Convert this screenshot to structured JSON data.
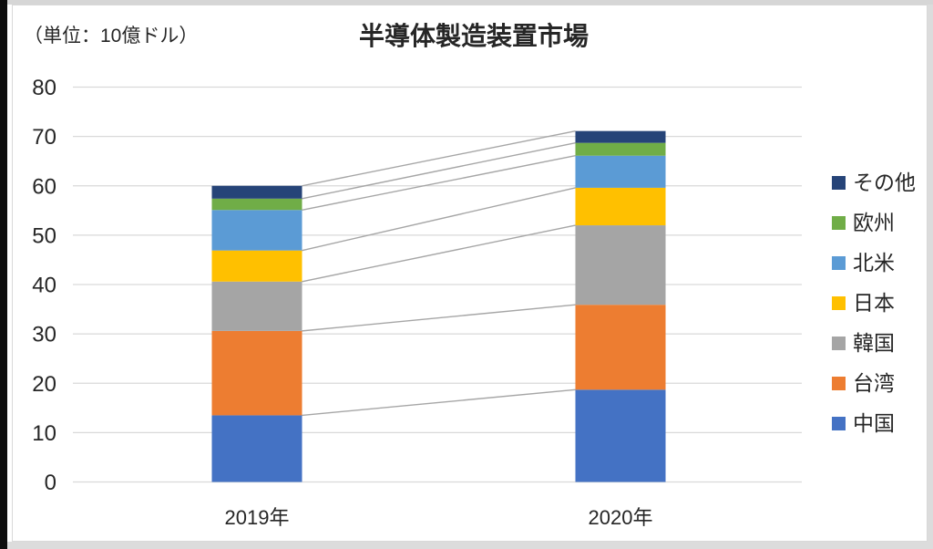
{
  "chart_data": {
    "type": "bar",
    "stacked": true,
    "title": "半導体製造装置市場",
    "unit_label": "（単位：10億ドル）",
    "categories": [
      "2019年",
      "2020年"
    ],
    "series": [
      {
        "name": "中国",
        "color": "#4472C4",
        "values": [
          13.5,
          18.7
        ]
      },
      {
        "name": "台湾",
        "color": "#ED7D31",
        "values": [
          17.1,
          17.2
        ]
      },
      {
        "name": "韓国",
        "color": "#A5A5A5",
        "values": [
          10.0,
          16.1
        ]
      },
      {
        "name": "日本",
        "color": "#FFC000",
        "values": [
          6.3,
          7.6
        ]
      },
      {
        "name": "北米",
        "color": "#5B9BD5",
        "values": [
          8.2,
          6.5
        ]
      },
      {
        "name": "欧州",
        "color": "#70AD47",
        "values": [
          2.3,
          2.6
        ]
      },
      {
        "name": "その他",
        "color": "#264478",
        "values": [
          2.6,
          2.4
        ]
      }
    ],
    "totals": [
      60.0,
      71.1
    ],
    "ylim": [
      0,
      80
    ],
    "yticks": [
      0,
      10,
      20,
      30,
      40,
      50,
      60,
      70,
      80
    ],
    "grid": true,
    "gridline_color": "#D9D9D9",
    "connector_line_color": "#A6A6A6",
    "text_color": "#262626",
    "legend_position": "right",
    "legend_order_top_to_bottom": [
      "その他",
      "欧州",
      "北米",
      "日本",
      "韓国",
      "台湾",
      "中国"
    ]
  }
}
